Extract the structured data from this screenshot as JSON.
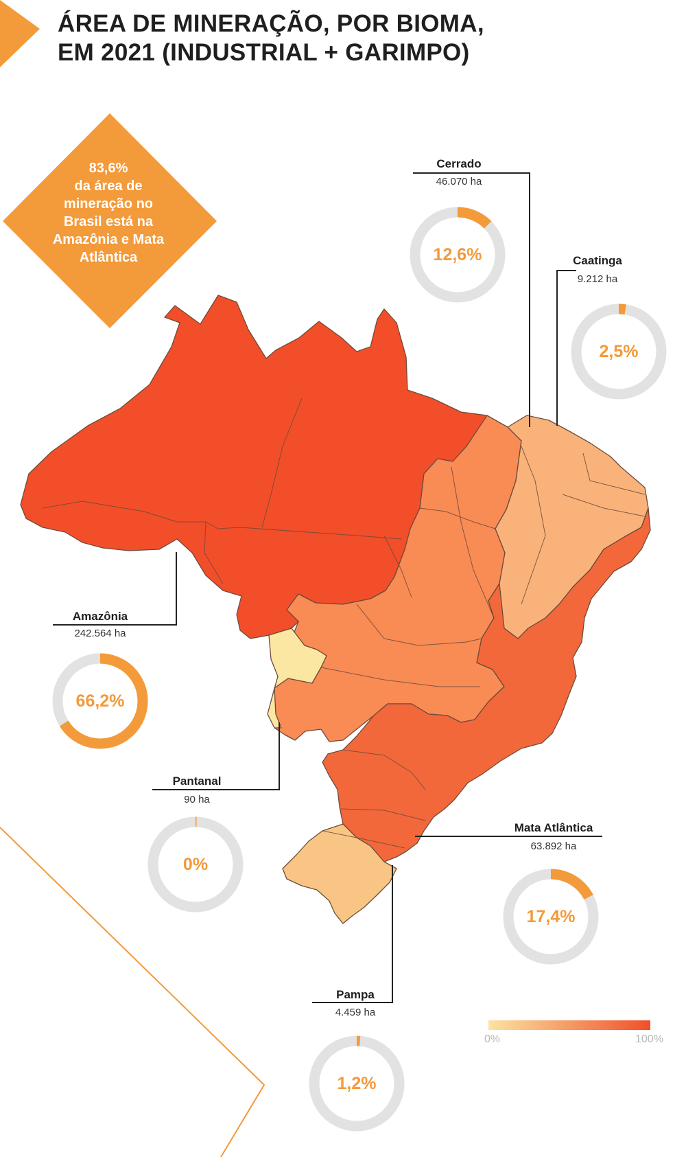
{
  "title": {
    "line1": "ÁREA DE MINERAÇÃO, POR BIOMA,",
    "line2": "EM 2021 (INDUSTRIAL + GARIMPO)"
  },
  "highlight": {
    "percent": "83,6%",
    "lines": [
      "da área de",
      "mineração no",
      "Brasil está na",
      "Amazônia e Mata",
      "Atlântica"
    ]
  },
  "biomes": [
    {
      "key": "cerrado",
      "name": "Cerrado",
      "area": "46.070 ha",
      "percent_label": "12,6%",
      "share": 0.126
    },
    {
      "key": "caatinga",
      "name": "Caatinga",
      "area": "9.212 ha",
      "percent_label": "2,5%",
      "share": 0.025
    },
    {
      "key": "amazonia",
      "name": "Amazônia",
      "area": "242.564 ha",
      "percent_label": "66,2%",
      "share": 0.662
    },
    {
      "key": "pantanal",
      "name": "Pantanal",
      "area": "90 ha",
      "percent_label": "0%",
      "share": 0.0
    },
    {
      "key": "mata_atlantica",
      "name": "Mata Atlântica",
      "area": "63.892 ha",
      "percent_label": "17,4%",
      "share": 0.174
    },
    {
      "key": "pampa",
      "name": "Pampa",
      "area": "4.459 ha",
      "percent_label": "1,2%",
      "share": 0.012
    }
  ],
  "legend": {
    "min_label": "0%",
    "max_label": "100%",
    "color_min": "#fbe3a0",
    "color_max": "#f0502a"
  },
  "colors": {
    "accent": "#f39a3a",
    "ring_track": "#e2e2e2",
    "amazonia": "#f24e2a",
    "cerrado": "#f98b55",
    "caatinga": "#f9b27a",
    "mata_atlantica": "#f2683a",
    "pantanal": "#fbe6a2",
    "pampa": "#f9c585"
  }
}
